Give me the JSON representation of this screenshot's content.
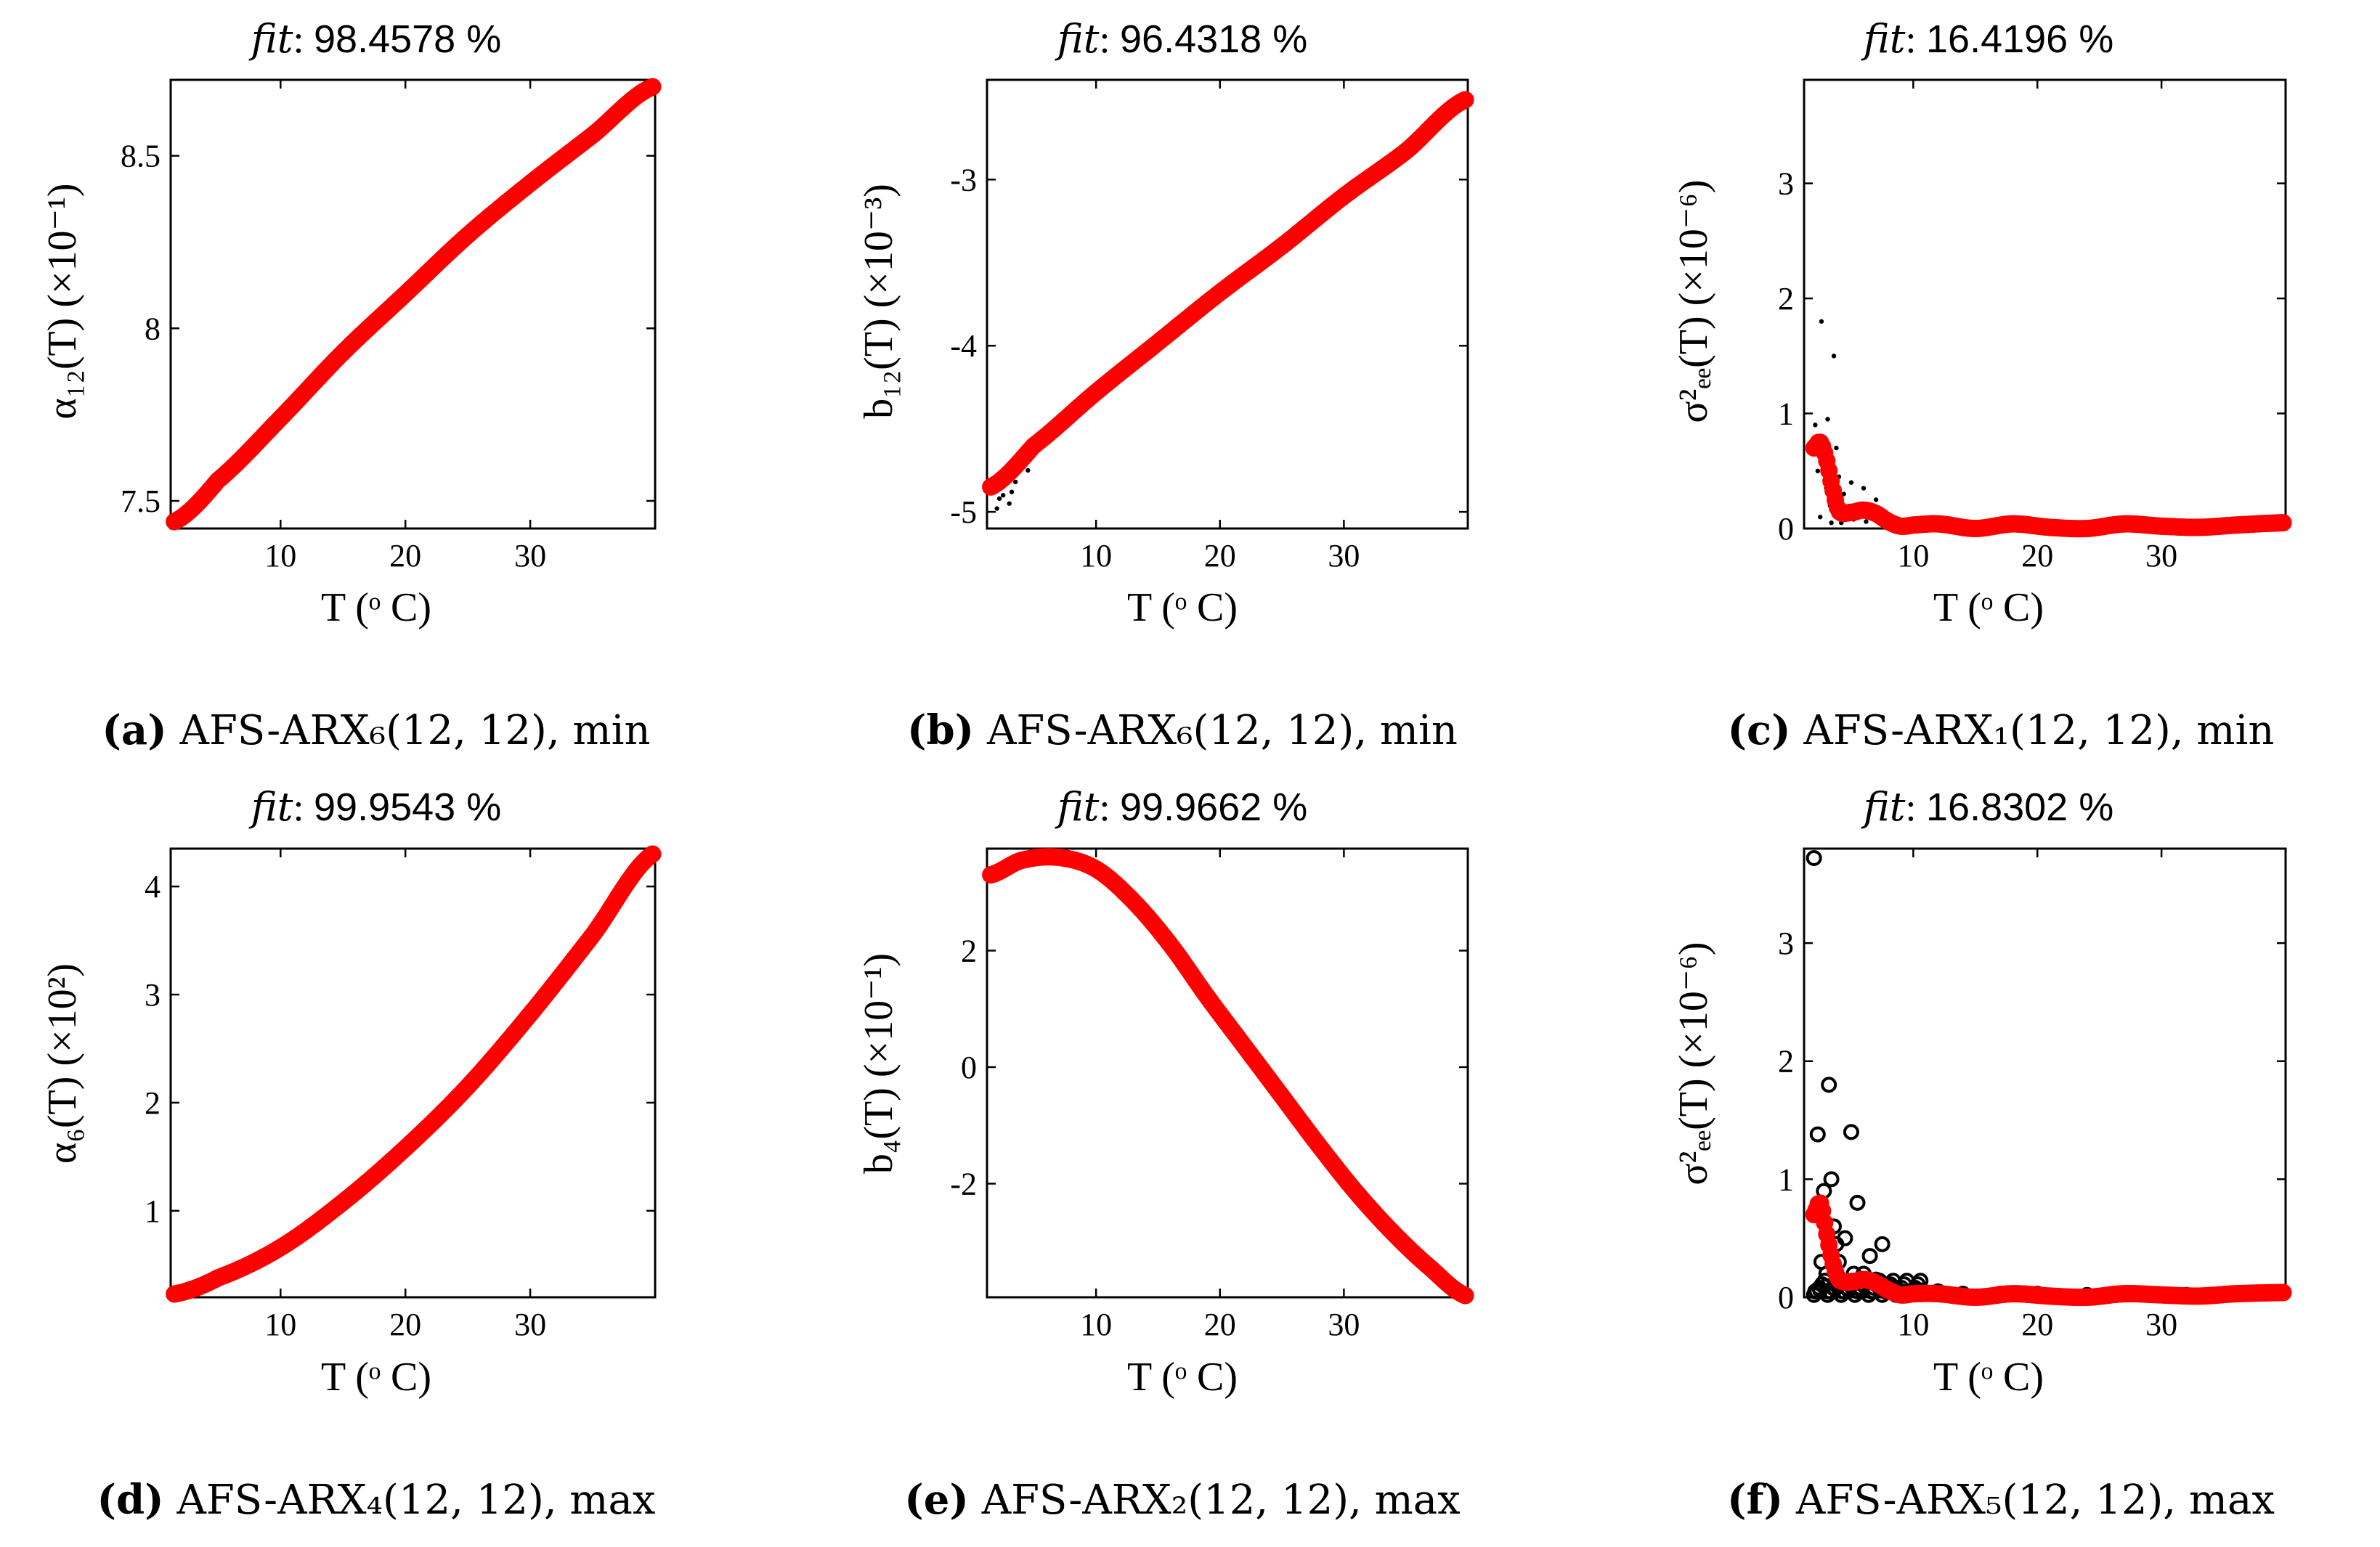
{
  "colors": {
    "fit": "#ff0000",
    "data": "#000000",
    "axis": "#000000"
  },
  "panels": [
    {
      "id": "a",
      "title_prefix": "fit",
      "title_value": "98.4578 %",
      "ylabel": "α₁₂(T) (×10⁻¹)",
      "xlabel": "T (ᵒ C)",
      "caption_letter": "(a)",
      "caption_text": "AFS-ARX₆(12, 12), min",
      "chart_data": {
        "type": "scatter",
        "xlim": [
          1.2,
          40.0
        ],
        "ylim": [
          7.42,
          8.72
        ],
        "xticks": [
          10,
          20,
          30
        ],
        "xtick_labels": [
          "10",
          "20",
          "30"
        ],
        "yticks": [
          7.5,
          8.0,
          8.5
        ],
        "ytick_labels": [
          "7.5",
          "8",
          "8.5"
        ],
        "fit_curve": {
          "x": [
            1.5,
            5,
            10,
            15,
            20,
            25,
            30,
            35,
            39.8
          ],
          "y": [
            7.44,
            7.56,
            7.74,
            7.93,
            8.1,
            8.27,
            8.42,
            8.56,
            8.7
          ]
        },
        "scatter_points": []
      }
    },
    {
      "id": "b",
      "title_prefix": "fit",
      "title_value": "96.4318 %",
      "ylabel": "b₁₂(T) (×10⁻³)",
      "xlabel": "T (ᵒ C)",
      "caption_letter": "(b)",
      "caption_text": "AFS-ARX₆(12, 12), min",
      "chart_data": {
        "type": "scatter",
        "xlim": [
          1.2,
          40.0
        ],
        "ylim": [
          -5.1,
          -2.4
        ],
        "xticks": [
          10,
          20,
          30
        ],
        "xtick_labels": [
          "10",
          "20",
          "30"
        ],
        "yticks": [
          -5,
          -4,
          -3
        ],
        "ytick_labels": [
          "-5",
          "-4",
          "-3"
        ],
        "fit_curve": {
          "x": [
            1.5,
            5,
            10,
            15,
            20,
            25,
            30,
            35,
            39.8
          ],
          "y": [
            -4.85,
            -4.6,
            -4.28,
            -3.98,
            -3.68,
            -3.4,
            -3.1,
            -2.83,
            -2.52
          ]
        },
        "scatter_points": [
          [
            2.0,
            -4.98
          ],
          [
            2.5,
            -4.9
          ],
          [
            3.0,
            -4.95
          ],
          [
            3.5,
            -4.82
          ],
          [
            4.0,
            -4.7
          ],
          [
            4.5,
            -4.75
          ],
          [
            5.0,
            -4.62
          ],
          [
            6.0,
            -4.55
          ],
          [
            7.0,
            -4.48
          ],
          [
            8.0,
            -4.4
          ],
          [
            2.2,
            -4.92
          ],
          [
            3.2,
            -4.88
          ]
        ]
      }
    },
    {
      "id": "c",
      "title_prefix": "fit",
      "title_value": "16.4196 %",
      "ylabel": "σ²ₑₑ(T) (×10⁻⁶)",
      "xlabel": "T (ᵒ C)",
      "caption_letter": "(c)",
      "caption_text": "AFS-ARX₁(12, 12), min",
      "chart_data": {
        "type": "scatter",
        "xlim": [
          1.2,
          40.0
        ],
        "ylim": [
          0,
          3.9
        ],
        "xticks": [
          10,
          20,
          30
        ],
        "xtick_labels": [
          "10",
          "20",
          "30"
        ],
        "yticks": [
          0,
          1,
          2,
          3
        ],
        "ytick_labels": [
          "0",
          "1",
          "2",
          "3"
        ],
        "fit_curve": {
          "x": [
            2.0,
            2.5,
            3.0,
            3.5,
            4.0,
            5.0,
            6.0,
            7.0,
            8.0,
            9.0,
            10.0,
            12,
            15,
            18,
            21,
            24,
            27,
            30,
            33,
            36,
            39.8
          ],
          "y": [
            0.7,
            0.75,
            0.6,
            0.35,
            0.15,
            0.14,
            0.16,
            0.13,
            0.06,
            0.02,
            0.03,
            0.04,
            0.0,
            0.04,
            0.01,
            0.0,
            0.04,
            0.02,
            0.01,
            0.03,
            0.05
          ]
        },
        "scatter_points": [
          [
            2.1,
            0.9
          ],
          [
            2.3,
            0.5
          ],
          [
            2.6,
            1.8
          ],
          [
            2.8,
            0.6
          ],
          [
            3.0,
            0.35
          ],
          [
            3.1,
            0.95
          ],
          [
            3.3,
            0.2
          ],
          [
            3.6,
            1.5
          ],
          [
            3.8,
            0.7
          ],
          [
            4.0,
            0.45
          ],
          [
            4.4,
            0.3
          ],
          [
            4.7,
            0.1
          ],
          [
            5.0,
            0.4
          ],
          [
            5.5,
            0.2
          ],
          [
            6.0,
            0.35
          ],
          [
            6.5,
            0.15
          ],
          [
            7.0,
            0.25
          ],
          [
            7.5,
            0.1
          ],
          [
            2.5,
            0.1
          ],
          [
            3.4,
            0.05
          ],
          [
            4.2,
            0.05
          ],
          [
            5.2,
            0.08
          ],
          [
            6.2,
            0.06
          ],
          [
            8.0,
            0.05
          ]
        ]
      }
    },
    {
      "id": "d",
      "title_prefix": "fit",
      "title_value": "99.9543 %",
      "ylabel": "α₆(T) (×10²)",
      "xlabel": "T (ᵒ C)",
      "caption_letter": "(d)",
      "caption_text": "AFS-ARX₄(12, 12), max",
      "chart_data": {
        "type": "scatter",
        "xlim": [
          1.2,
          40.0
        ],
        "ylim": [
          0.2,
          4.35
        ],
        "xticks": [
          10,
          20,
          30
        ],
        "xtick_labels": [
          "10",
          "20",
          "30"
        ],
        "yticks": [
          1,
          2,
          3,
          4
        ],
        "ytick_labels": [
          "1",
          "2",
          "3",
          "4"
        ],
        "fit_curve": {
          "x": [
            1.5,
            5,
            10,
            15,
            20,
            25,
            30,
            35,
            39.8
          ],
          "y": [
            0.23,
            0.38,
            0.66,
            1.08,
            1.58,
            2.15,
            2.82,
            3.55,
            4.3
          ]
        },
        "scatter_points": []
      }
    },
    {
      "id": "e",
      "title_prefix": "fit",
      "title_value": "99.9662 %",
      "ylabel": "b₄(T) (×10⁻¹)",
      "xlabel": "T (ᵒ C)",
      "caption_letter": "(e)",
      "caption_text": "AFS-ARX₂(12, 12), max",
      "chart_data": {
        "type": "scatter",
        "xlim": [
          1.2,
          40.0
        ],
        "ylim": [
          -3.95,
          3.75
        ],
        "xticks": [
          10,
          20,
          30
        ],
        "xtick_labels": [
          "10",
          "20",
          "30"
        ],
        "yticks": [
          -2,
          0,
          2
        ],
        "ytick_labels": [
          "-2",
          "0",
          "2"
        ],
        "fit_curve": {
          "x": [
            1.5,
            4,
            7,
            10,
            13,
            16,
            19,
            22,
            25,
            28,
            31,
            34,
            37,
            39.8
          ],
          "y": [
            3.3,
            3.55,
            3.6,
            3.4,
            2.85,
            2.1,
            1.2,
            0.35,
            -0.5,
            -1.35,
            -2.15,
            -2.85,
            -3.45,
            -3.92
          ]
        },
        "scatter_points": []
      }
    },
    {
      "id": "f",
      "title_prefix": "fit",
      "title_value": "16.8302 %",
      "ylabel": "σ²ₑₑ(T) (×10⁻⁶)",
      "xlabel": "T (ᵒ C)",
      "caption_letter": "(f)",
      "caption_text": "AFS-ARX₅(12, 12), max",
      "chart_data": {
        "type": "scatter",
        "xlim": [
          1.2,
          40.0
        ],
        "ylim": [
          0,
          3.8
        ],
        "xticks": [
          10,
          20,
          30
        ],
        "xtick_labels": [
          "10",
          "20",
          "30"
        ],
        "yticks": [
          0,
          1,
          2,
          3
        ],
        "ytick_labels": [
          "0",
          "1",
          "2",
          "3"
        ],
        "fit_curve": {
          "x": [
            2.0,
            2.5,
            3.0,
            3.5,
            4.0,
            5.0,
            6.0,
            7.0,
            8.0,
            9.0,
            10.0,
            12,
            15,
            18,
            21,
            24,
            27,
            30,
            33,
            36,
            39.8
          ],
          "y": [
            0.7,
            0.8,
            0.55,
            0.3,
            0.15,
            0.13,
            0.15,
            0.12,
            0.06,
            0.02,
            0.03,
            0.03,
            0.0,
            0.03,
            0.01,
            0.0,
            0.03,
            0.02,
            0.01,
            0.03,
            0.04
          ]
        },
        "scatter_points": [
          [
            2.0,
            3.72
          ],
          [
            2.3,
            1.38
          ],
          [
            2.6,
            0.3
          ],
          [
            2.8,
            0.9
          ],
          [
            3.0,
            0.2
          ],
          [
            3.2,
            1.8
          ],
          [
            3.4,
            1.0
          ],
          [
            3.6,
            0.6
          ],
          [
            3.8,
            0.45
          ],
          [
            4.0,
            0.3
          ],
          [
            4.5,
            0.5
          ],
          [
            5.0,
            1.4
          ],
          [
            5.2,
            0.2
          ],
          [
            5.5,
            0.8
          ],
          [
            6.0,
            0.2
          ],
          [
            6.5,
            0.35
          ],
          [
            7.0,
            0.15
          ],
          [
            7.5,
            0.45
          ],
          [
            8.0,
            0.1
          ],
          [
            9.0,
            0.05
          ],
          [
            10.5,
            0.06
          ],
          [
            12.0,
            0.05
          ],
          [
            2.1,
            0.05
          ],
          [
            2.5,
            0.06
          ],
          [
            3.1,
            0.05
          ],
          [
            3.7,
            0.07
          ],
          [
            4.3,
            0.05
          ],
          [
            4.8,
            0.06
          ],
          [
            5.8,
            0.06
          ],
          [
            6.8,
            0.05
          ],
          [
            14,
            0.03
          ],
          [
            17,
            0.03
          ],
          [
            20,
            0.03
          ],
          [
            24,
            0.02
          ],
          [
            28,
            0.03
          ],
          [
            32,
            0.02
          ],
          [
            36,
            0.03
          ]
        ]
      }
    }
  ]
}
